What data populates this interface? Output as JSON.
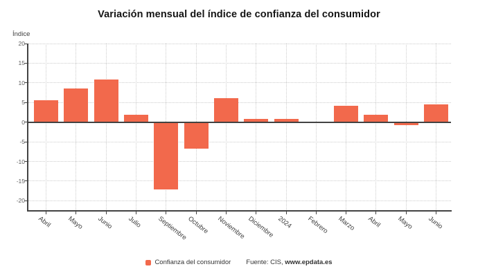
{
  "chart_data": {
    "type": "bar",
    "title": "Variación mensual del índice de confianza del consumidor",
    "ylabel": "Índice",
    "xlabel": "",
    "categories": [
      "Abril",
      "Mayo",
      "Junio",
      "Julio",
      "Septiembre",
      "Octubre",
      "Noviembre",
      "Diciembre",
      "2024",
      "Febrero",
      "Marzo",
      "Abril",
      "Mayo",
      "Junio"
    ],
    "series": [
      {
        "name": "Confianza del consumidor",
        "values": [
          5.5,
          8.6,
          10.9,
          1.9,
          -17.2,
          -6.8,
          6.1,
          0.9,
          0.9,
          0.2,
          4.1,
          1.9,
          -0.7,
          4.5
        ]
      }
    ],
    "ylim": [
      -20,
      20
    ],
    "y_ticks": [
      20,
      15,
      10,
      5,
      0,
      -5,
      -10,
      -15,
      -20
    ],
    "grid": true,
    "legend_position": "bottom",
    "source_prefix": "Fuente: CIS, ",
    "source_link": "www.epdata.es",
    "colors": {
      "bar": "#f2694c",
      "axis": "#424242",
      "grid": "#cccccc",
      "title_text": "#141414",
      "tick_text": "#5f5f5f",
      "category_text": "#3d3d3d",
      "legend_text": "#333333"
    }
  }
}
